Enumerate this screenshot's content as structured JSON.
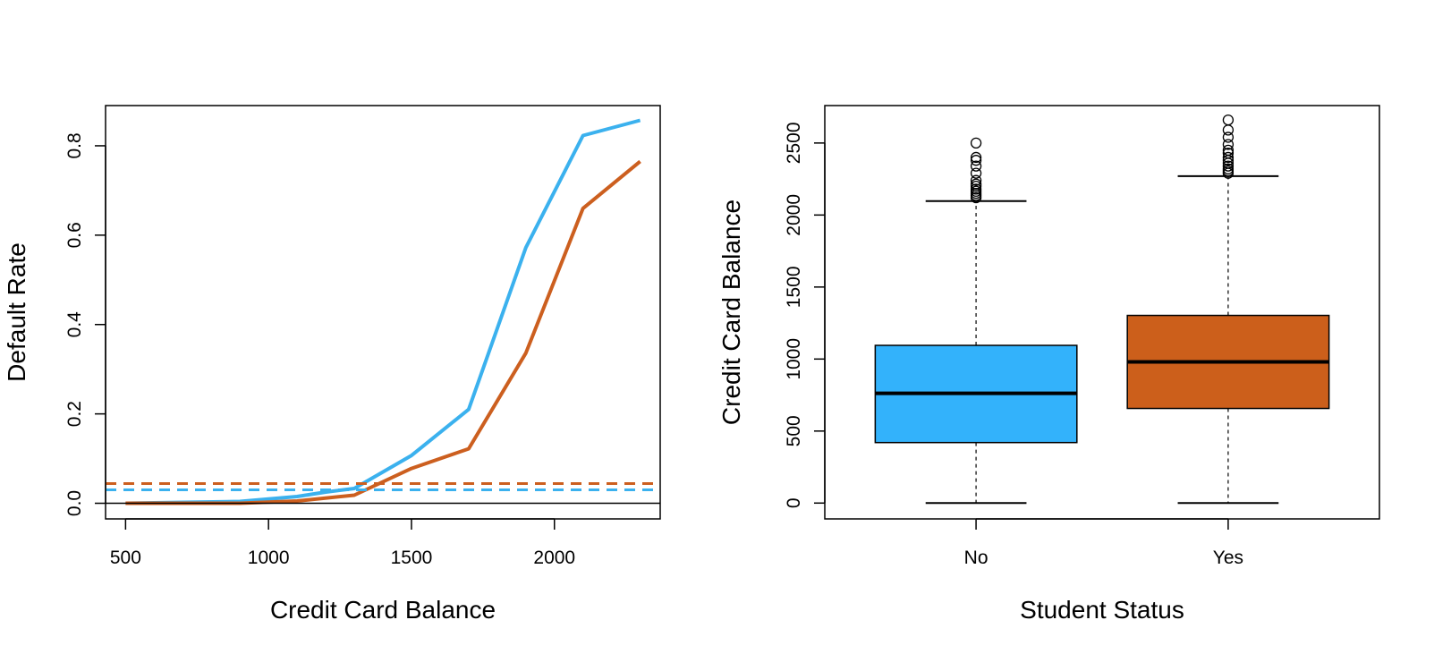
{
  "chart_data": [
    {
      "type": "line",
      "xlabel": "Credit Card Balance",
      "ylabel": "Default Rate",
      "xlim": [
        430,
        2370
      ],
      "ylim": [
        -0.035,
        0.89
      ],
      "x_ticks": [
        500,
        1000,
        1500,
        2000
      ],
      "y_ticks": [
        0.0,
        0.2,
        0.4,
        0.6,
        0.8
      ],
      "x_tick_labels": [
        "500",
        "1000",
        "1500",
        "2000"
      ],
      "y_tick_labels": [
        "0.0",
        "0.2",
        "0.4",
        "0.6",
        "0.8"
      ],
      "grid": false,
      "series": [
        {
          "color": "#3BB1EE",
          "style": "solid",
          "x": [
            500,
            700,
            900,
            1100,
            1200,
            1300,
            1500,
            1700,
            1900,
            2100,
            2300
          ],
          "y": [
            0.0,
            0.002,
            0.004,
            0.015,
            0.025,
            0.033,
            0.107,
            0.21,
            0.572,
            0.823,
            0.857
          ]
        },
        {
          "color": "#CC5F1F",
          "style": "solid",
          "x": [
            500,
            700,
            900,
            1100,
            1300,
            1500,
            1700,
            1900,
            2100,
            2300
          ],
          "y": [
            0.0,
            0.0,
            0.0,
            0.005,
            0.018,
            0.078,
            0.122,
            0.336,
            0.66,
            0.765
          ]
        },
        {
          "color": "#CC5F1F",
          "style": "dashed",
          "x": [
            430,
            2370
          ],
          "y": [
            0.044,
            0.044
          ]
        },
        {
          "color": "#3BB1EE",
          "style": "dashed",
          "x": [
            430,
            2370
          ],
          "y": [
            0.03,
            0.03
          ]
        },
        {
          "color": "#000000",
          "style": "solid",
          "x": [
            430,
            2370
          ],
          "y": [
            0.0,
            0.0
          ]
        }
      ]
    },
    {
      "type": "box",
      "xlabel": "Student Status",
      "ylabel": "Credit Card Balance",
      "ylim": [
        -110,
        2760
      ],
      "y_ticks": [
        0,
        500,
        1000,
        1500,
        2000,
        2500
      ],
      "y_tick_labels": [
        "0",
        "500",
        "1000",
        "1500",
        "2000",
        "2500"
      ],
      "categories": [
        "No",
        "Yes"
      ],
      "grid": false,
      "boxes": [
        {
          "category": "No",
          "color": "#33B2FB",
          "min": 0,
          "q1": 420,
          "median": 762,
          "q3": 1095,
          "max": 2097,
          "outliers": [
            2120,
            2135,
            2150,
            2165,
            2180,
            2200,
            2215,
            2240,
            2290,
            2340,
            2380,
            2400,
            2500
          ]
        },
        {
          "category": "Yes",
          "color": "#CC5F1B",
          "min": 0,
          "q1": 657,
          "median": 980,
          "q3": 1303,
          "max": 2270,
          "outliers": [
            2290,
            2305,
            2320,
            2340,
            2360,
            2380,
            2400,
            2430,
            2450,
            2490,
            2540,
            2590,
            2660
          ]
        }
      ]
    }
  ]
}
